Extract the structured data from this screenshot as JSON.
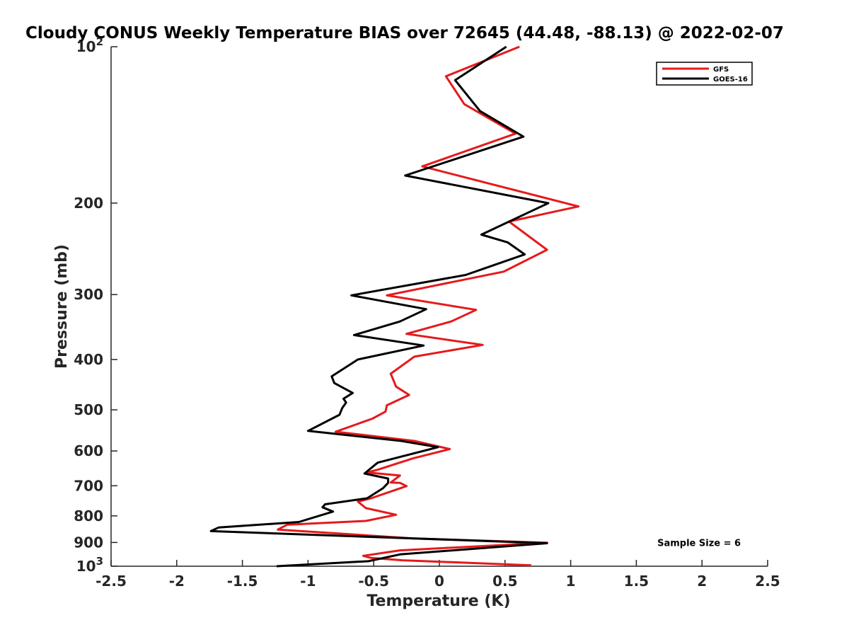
{
  "chart_data": {
    "type": "line",
    "title": "Cloudy CONUS Weekly Temperature BIAS over 72645 (44.48, -88.13) @ 2022-02-07",
    "xlabel": "Temperature (K)",
    "ylabel": "Pressure (mb)",
    "xlim": [
      -2.5,
      2.5
    ],
    "ylim": [
      100,
      1000
    ],
    "y_scale": "log",
    "y_reversed": true,
    "x_ticks": [
      -2.5,
      -2,
      -1.5,
      -1,
      -0.5,
      0,
      0.5,
      1,
      1.5,
      2,
      2.5
    ],
    "x_tick_labels": [
      "-2.5",
      "-2",
      "-1.5",
      "-1",
      "-0.5",
      "0",
      "0.5",
      "1",
      "1.5",
      "2",
      "2.5"
    ],
    "y_ticks": [
      {
        "value": 100,
        "base": "10",
        "exp": "2"
      },
      {
        "value": 200,
        "label": "200"
      },
      {
        "value": 300,
        "label": "300"
      },
      {
        "value": 400,
        "label": "400"
      },
      {
        "value": 500,
        "label": "500"
      },
      {
        "value": 600,
        "label": "600"
      },
      {
        "value": 700,
        "label": "700"
      },
      {
        "value": 800,
        "label": "800"
      },
      {
        "value": 900,
        "label": "900"
      },
      {
        "value": 1000,
        "base": "10",
        "exp": "3"
      }
    ],
    "grid": false,
    "legend_position": "top-right",
    "series": [
      {
        "name": "GFS",
        "color": "#e41a1c",
        "points": [
          [
            0.61,
            100
          ],
          [
            0.05,
            114
          ],
          [
            0.19,
            129
          ],
          [
            0.58,
            147
          ],
          [
            -0.13,
            170
          ],
          [
            1.06,
            203
          ],
          [
            0.53,
            217
          ],
          [
            0.82,
            246
          ],
          [
            0.49,
            271
          ],
          [
            -0.4,
            301
          ],
          [
            0.28,
            321
          ],
          [
            0.09,
            338
          ],
          [
            -0.25,
            357
          ],
          [
            0.33,
            375
          ],
          [
            -0.19,
            395
          ],
          [
            -0.37,
            426
          ],
          [
            -0.33,
            451
          ],
          [
            -0.23,
            468
          ],
          [
            -0.4,
            490
          ],
          [
            -0.41,
            504
          ],
          [
            -0.51,
            520
          ],
          [
            -0.79,
            551
          ],
          [
            -0.19,
            574
          ],
          [
            0.08,
            595
          ],
          [
            -0.2,
            620
          ],
          [
            -0.47,
            652
          ],
          [
            -0.55,
            660
          ],
          [
            -0.3,
            669
          ],
          [
            -0.37,
            690
          ],
          [
            -0.3,
            691
          ],
          [
            -0.25,
            701
          ],
          [
            -0.52,
            740
          ],
          [
            -0.62,
            751
          ],
          [
            -0.56,
            773
          ],
          [
            -0.33,
            796
          ],
          [
            -0.56,
            818
          ],
          [
            -1.16,
            832
          ],
          [
            -1.23,
            850
          ],
          [
            -0.2,
            884
          ],
          [
            0.82,
            901
          ],
          [
            -0.3,
            932
          ],
          [
            -0.58,
            955
          ],
          [
            -0.52,
            964
          ],
          [
            -0.28,
            974
          ],
          [
            0.7,
            996
          ]
        ]
      },
      {
        "name": "GOES-16",
        "color": "#000000",
        "points": [
          [
            0.51,
            100
          ],
          [
            0.12,
            116
          ],
          [
            0.31,
            133
          ],
          [
            0.64,
            149
          ],
          [
            -0.26,
            177
          ],
          [
            0.83,
            200
          ],
          [
            0.32,
            230
          ],
          [
            0.52,
            238
          ],
          [
            0.65,
            251
          ],
          [
            0.2,
            275
          ],
          [
            -0.67,
            301
          ],
          [
            -0.1,
            320
          ],
          [
            -0.3,
            338
          ],
          [
            -0.65,
            359
          ],
          [
            -0.12,
            376
          ],
          [
            -0.62,
            400
          ],
          [
            -0.82,
            431
          ],
          [
            -0.8,
            444
          ],
          [
            -0.66,
            464
          ],
          [
            -0.73,
            476
          ],
          [
            -0.71,
            484
          ],
          [
            -0.74,
            496
          ],
          [
            -0.76,
            511
          ],
          [
            -1.0,
            549
          ],
          [
            -0.29,
            574
          ],
          [
            -0.01,
            590
          ],
          [
            -0.47,
            632
          ],
          [
            -0.57,
            663
          ],
          [
            -0.39,
            678
          ],
          [
            -0.39,
            691
          ],
          [
            -0.43,
            708
          ],
          [
            -0.55,
            740
          ],
          [
            -0.87,
            760
          ],
          [
            -0.89,
            770
          ],
          [
            -0.81,
            785
          ],
          [
            -1.07,
            822
          ],
          [
            -1.68,
            842
          ],
          [
            -1.74,
            856
          ],
          [
            0.82,
            903
          ],
          [
            -0.3,
            949
          ],
          [
            -0.54,
            978
          ],
          [
            -1.24,
            1000
          ]
        ]
      }
    ],
    "annotations": [
      {
        "text": "Sample Size = 6",
        "x": 1.66,
        "y": 900
      }
    ]
  }
}
